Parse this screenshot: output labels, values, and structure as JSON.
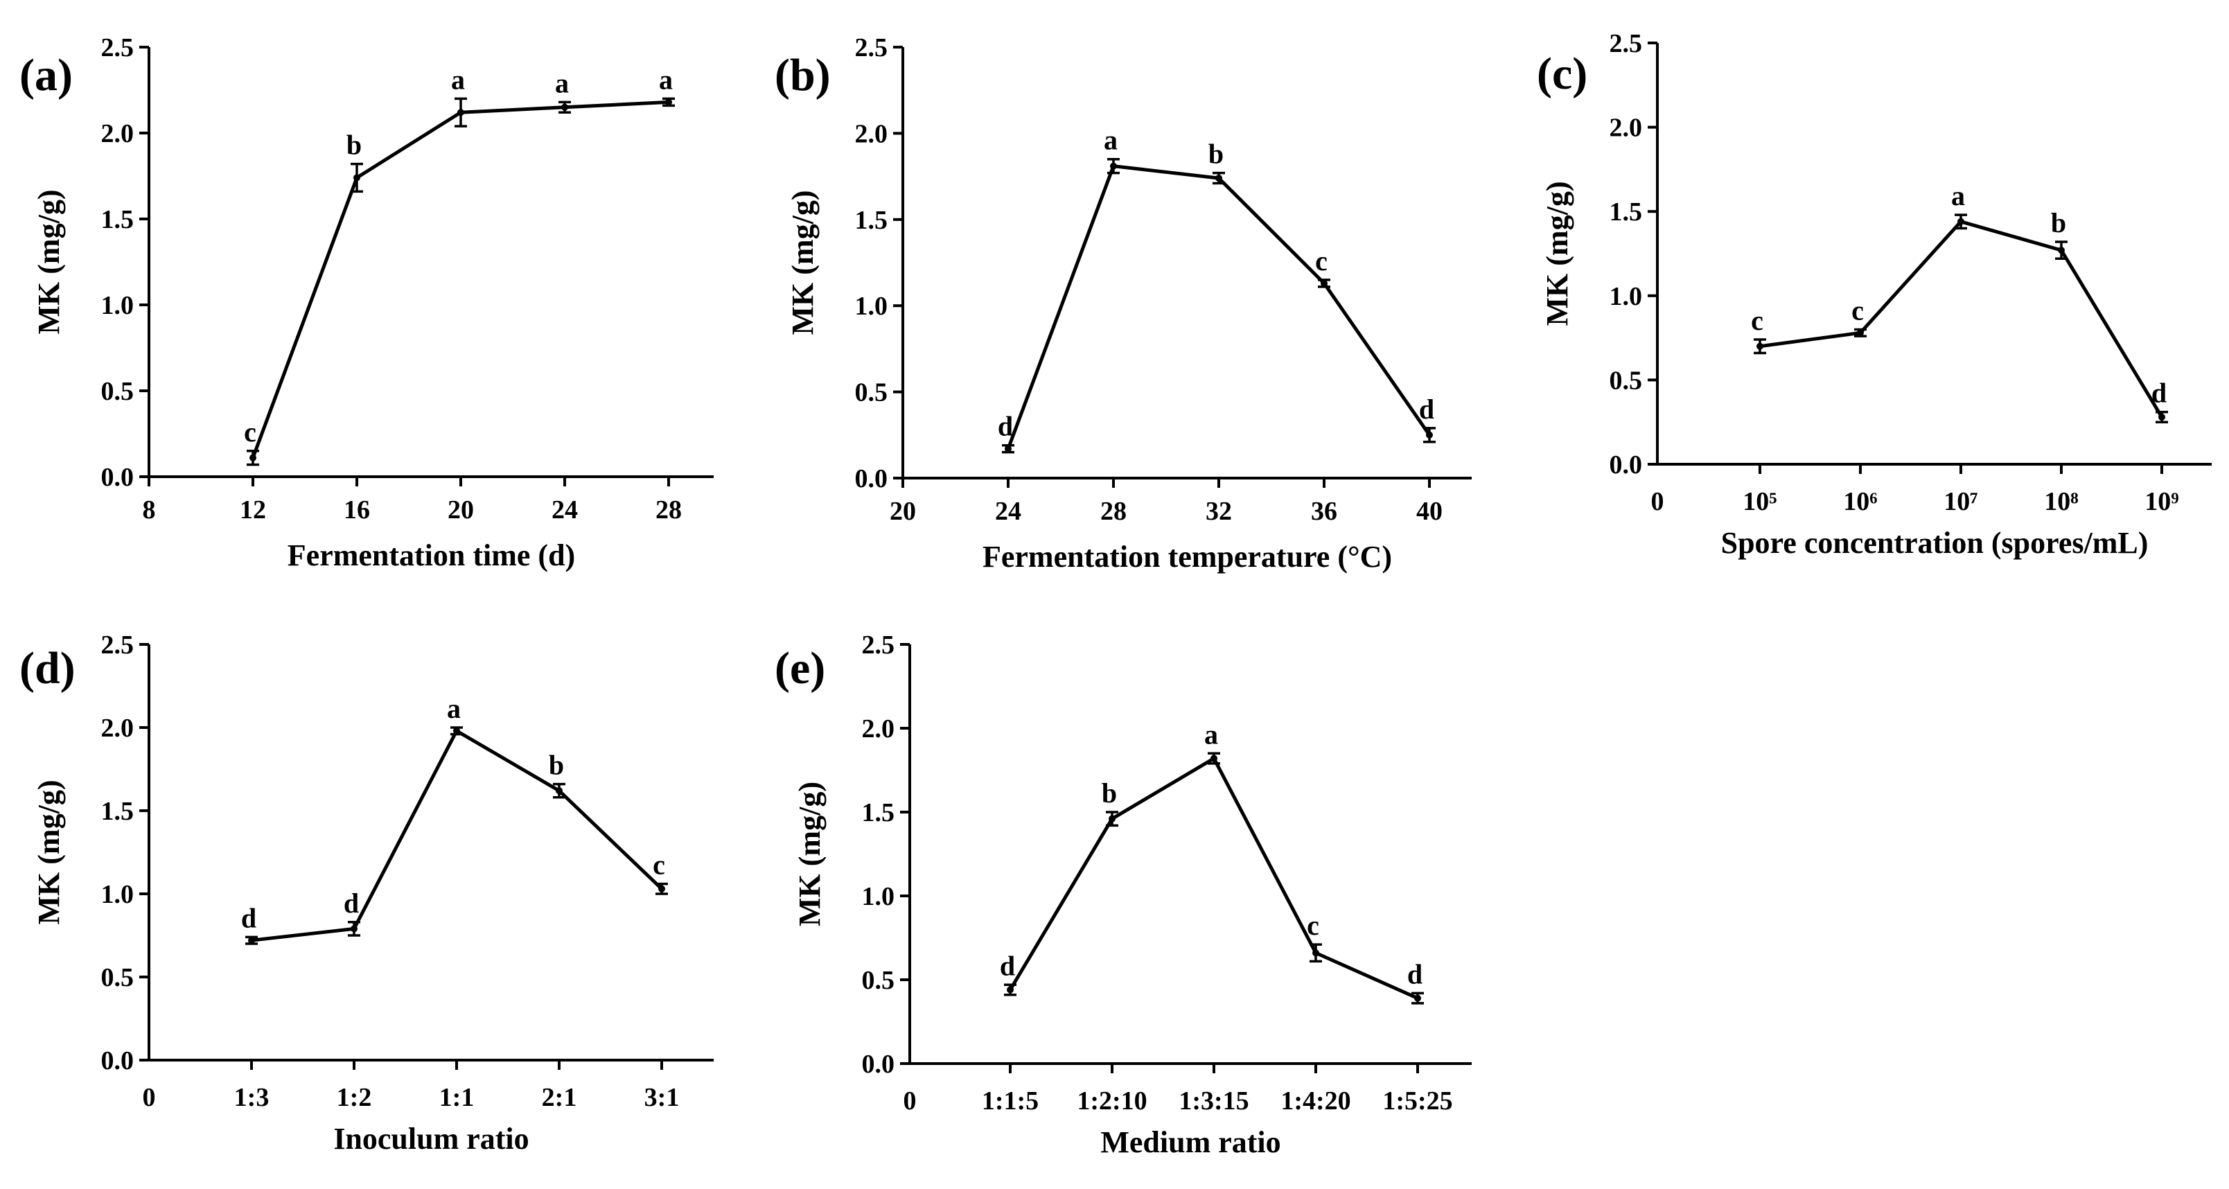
{
  "chart_data": [
    {
      "type": "line",
      "panel": "(a)",
      "xlabel": "Fermentation time (d)",
      "ylabel": "MK (mg/g)",
      "xaxis": "linear",
      "xlim": [
        8,
        30
      ],
      "xticks": [
        8,
        12,
        16,
        20,
        24,
        28
      ],
      "ylim": [
        0,
        2.5
      ],
      "yticks": [
        "0.0",
        "0.5",
        "1.0",
        "1.5",
        "2.0",
        "2.5"
      ],
      "points": [
        {
          "x": 12,
          "y": 0.11,
          "err": 0.04,
          "sig": "c"
        },
        {
          "x": 16,
          "y": 1.74,
          "err": 0.08,
          "sig": "b"
        },
        {
          "x": 20,
          "y": 2.12,
          "err": 0.08,
          "sig": "a"
        },
        {
          "x": 24,
          "y": 2.15,
          "err": 0.03,
          "sig": "a"
        },
        {
          "x": 28,
          "y": 2.18,
          "err": 0.02,
          "sig": "a"
        }
      ]
    },
    {
      "type": "line",
      "panel": "(b)",
      "xlabel": "Fermentation temperature (°C)",
      "ylabel": "MK (mg/g)",
      "xaxis": "linear",
      "xlim": [
        20,
        42
      ],
      "xticks": [
        20,
        24,
        28,
        32,
        36,
        40
      ],
      "ylim": [
        0,
        2.5
      ],
      "yticks": [
        "0.0",
        "0.5",
        "1.0",
        "1.5",
        "2.0",
        "2.5"
      ],
      "points": [
        {
          "x": 24,
          "y": 0.17,
          "err": 0.02,
          "sig": "d"
        },
        {
          "x": 28,
          "y": 1.81,
          "err": 0.04,
          "sig": "a"
        },
        {
          "x": 32,
          "y": 1.74,
          "err": 0.03,
          "sig": "b"
        },
        {
          "x": 36,
          "y": 1.13,
          "err": 0.02,
          "sig": "c"
        },
        {
          "x": 40,
          "y": 0.25,
          "err": 0.04,
          "sig": "d"
        }
      ]
    },
    {
      "type": "line",
      "panel": "(c)",
      "xlabel": "Spore concentration (spores/mL)",
      "ylabel": "MK (mg/g)",
      "xaxis": "category",
      "xzero": "0",
      "categories": [
        "10⁵",
        "10⁶",
        "10⁷",
        "10⁸",
        "10⁹"
      ],
      "ylim": [
        0,
        2.5
      ],
      "yticks": [
        "0.0",
        "0.5",
        "1.0",
        "1.5",
        "2.0",
        "2.5"
      ],
      "points": [
        {
          "x": "10⁵",
          "y": 0.7,
          "err": 0.04,
          "sig": "c"
        },
        {
          "x": "10⁶",
          "y": 0.78,
          "err": 0.02,
          "sig": "c"
        },
        {
          "x": "10⁷",
          "y": 1.44,
          "err": 0.04,
          "sig": "a"
        },
        {
          "x": "10⁸",
          "y": 1.27,
          "err": 0.05,
          "sig": "b"
        },
        {
          "x": "10⁹",
          "y": 0.28,
          "err": 0.03,
          "sig": "d"
        }
      ]
    },
    {
      "type": "line",
      "panel": "(d)",
      "xlabel": "Inoculum ratio",
      "ylabel": "MK (mg/g)",
      "xaxis": "category",
      "xzero": "0",
      "categories": [
        "1:3",
        "1:2",
        "1:1",
        "2:1",
        "3:1"
      ],
      "ylim": [
        0,
        2.5
      ],
      "yticks": [
        "0.0",
        "0.5",
        "1.0",
        "1.5",
        "2.0",
        "2.5"
      ],
      "points": [
        {
          "x": "1:3",
          "y": 0.72,
          "err": 0.02,
          "sig": "d"
        },
        {
          "x": "1:2",
          "y": 0.79,
          "err": 0.04,
          "sig": "d"
        },
        {
          "x": "1:1",
          "y": 1.98,
          "err": 0.02,
          "sig": "a"
        },
        {
          "x": "2:1",
          "y": 1.62,
          "err": 0.04,
          "sig": "b"
        },
        {
          "x": "3:1",
          "y": 1.03,
          "err": 0.03,
          "sig": "c"
        }
      ]
    },
    {
      "type": "line",
      "panel": "(e)",
      "xlabel": "Medium ratio",
      "ylabel": "MK (mg/g)",
      "xaxis": "category",
      "xzero": "0",
      "categories": [
        "1:1:5",
        "1:2:10",
        "1:3:15",
        "1:4:20",
        "1:5:25"
      ],
      "ylim": [
        0,
        2.5
      ],
      "yticks": [
        "0.0",
        "0.5",
        "1.0",
        "1.5",
        "2.0",
        "2.5"
      ],
      "points": [
        {
          "x": "1:1:5",
          "y": 0.44,
          "err": 0.03,
          "sig": "d"
        },
        {
          "x": "1:2:10",
          "y": 1.46,
          "err": 0.04,
          "sig": "b"
        },
        {
          "x": "1:3:15",
          "y": 1.82,
          "err": 0.03,
          "sig": "a"
        },
        {
          "x": "1:4:20",
          "y": 0.66,
          "err": 0.05,
          "sig": "c"
        },
        {
          "x": "1:5:25",
          "y": 0.39,
          "err": 0.03,
          "sig": "d"
        }
      ]
    }
  ]
}
